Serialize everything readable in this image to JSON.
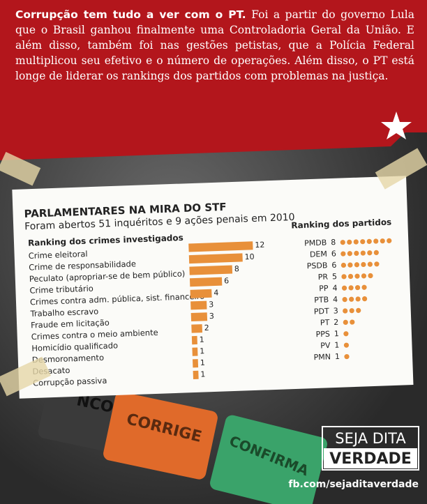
{
  "header": {
    "lead": "Corrupção tem tudo a ver com o PT.",
    "text": "Foi a partir do governo Lula que o Brasil ganhou finalmente uma Controladoria Geral da União. E além disso, também foi nas gestões petistas, que a Polícia Federal multiplicou seu efetivo e o número de operações.  Além disso, o PT está longe de liderar os rankings dos partidos com problemas na justiça."
  },
  "clipping": {
    "title": "PARLAMENTARES NA MIRA DO STF",
    "subtitle": "Foram abertos 51 inquéritos e 9 ações penais em 2010"
  },
  "chart_data": [
    {
      "type": "bar",
      "orientation": "horizontal",
      "title": "Ranking dos crimes investigados",
      "categories": [
        "Crime eleitoral",
        "Crime de responsabilidade",
        "Peculato (apropriar-se de bem público)",
        "Crime tributário",
        "Crimes contra adm. pública, sist. financeiro",
        "Trabalho escravo",
        "Fraude em licitação",
        "Crimes contra o meio ambiente",
        "Homicídio qualificado",
        "Desmoronamento",
        "Desacato",
        "Corrupção passiva"
      ],
      "values": [
        12,
        10,
        8,
        6,
        4,
        3,
        3,
        2,
        1,
        1,
        1,
        1
      ],
      "color": "#e8903a",
      "xlim": [
        0,
        12
      ]
    },
    {
      "type": "dot",
      "title": "Ranking dos partidos",
      "categories": [
        "PMDB",
        "DEM",
        "PSDB",
        "PR",
        "PP",
        "PTB",
        "PDT",
        "PT",
        "PPS",
        "PV",
        "PMN"
      ],
      "values": [
        8,
        6,
        6,
        5,
        4,
        4,
        3,
        2,
        1,
        1,
        1
      ],
      "color": "#e8903a"
    }
  ],
  "buttons": [
    "NCO",
    "CORRIGE",
    "CONFIRMA"
  ],
  "footer": {
    "logo_top": "SEJA DITA",
    "logo_bottom": "VERDADE",
    "link": "fb.com/sejaditaverdade"
  }
}
